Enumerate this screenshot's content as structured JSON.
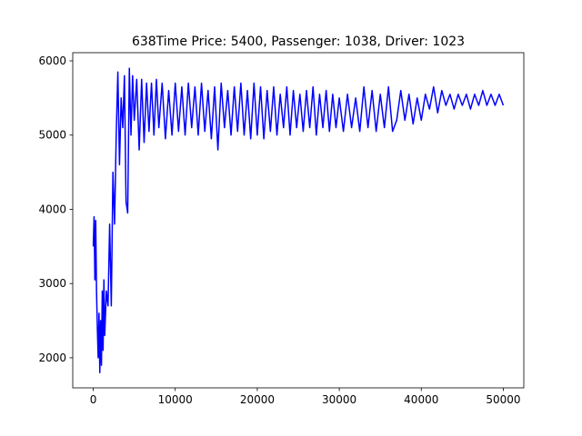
{
  "chart_data": {
    "type": "line",
    "title": "638Time Price: 5400, Passenger: 1038, Driver: 1023",
    "x": [
      0,
      100,
      200,
      300,
      400,
      500,
      600,
      700,
      800,
      900,
      1000,
      1100,
      1200,
      1300,
      1400,
      1600,
      1800,
      2000,
      2200,
      2400,
      2600,
      2800,
      3000,
      3200,
      3400,
      3600,
      3800,
      4000,
      4200,
      4400,
      4600,
      4800,
      5000,
      5300,
      5600,
      5900,
      6200,
      6500,
      6800,
      7100,
      7400,
      7700,
      8000,
      8400,
      8800,
      9200,
      9600,
      10000,
      10400,
      10800,
      11200,
      11600,
      12000,
      12400,
      12800,
      13200,
      13600,
      14000,
      14400,
      14800,
      15200,
      15600,
      16000,
      16400,
      16800,
      17200,
      17600,
      18000,
      18400,
      18800,
      19200,
      19600,
      20000,
      20400,
      20800,
      21200,
      21600,
      22000,
      22400,
      22800,
      23200,
      23600,
      24000,
      24400,
      24800,
      25200,
      25600,
      26000,
      26400,
      26800,
      27200,
      27600,
      28000,
      28400,
      28800,
      29200,
      29600,
      30000,
      30500,
      31000,
      31500,
      32000,
      32500,
      33000,
      33500,
      34000,
      34500,
      35000,
      35500,
      36000,
      36500,
      37000,
      37500,
      38000,
      38500,
      39000,
      39500,
      40000,
      40500,
      41000,
      41500,
      42000,
      42500,
      43000,
      43500,
      44000,
      44500,
      45000,
      45500,
      46000,
      46500,
      47000,
      47500,
      48000,
      48500,
      49000,
      49500,
      50000
    ],
    "series": [
      {
        "color": "#0000ff",
        "values": [
          3500,
          3900,
          3050,
          3850,
          2900,
          2400,
          2000,
          2600,
          1800,
          2500,
          1900,
          2900,
          2100,
          3050,
          2300,
          2900,
          2700,
          3800,
          2700,
          4500,
          3800,
          5000,
          5850,
          4600,
          5500,
          5100,
          5800,
          4100,
          3950,
          5900,
          5000,
          5800,
          5200,
          5750,
          4800,
          5750,
          4900,
          5700,
          5050,
          5700,
          5000,
          5750,
          5100,
          5700,
          4950,
          5600,
          5000,
          5700,
          5050,
          5650,
          5000,
          5700,
          5100,
          5650,
          5000,
          5700,
          5050,
          5600,
          4950,
          5650,
          4800,
          5700,
          5100,
          5600,
          5000,
          5650,
          5050,
          5700,
          5000,
          5600,
          4950,
          5700,
          5000,
          5650,
          4950,
          5600,
          5050,
          5650,
          5000,
          5550,
          5100,
          5650,
          5000,
          5600,
          5100,
          5550,
          5050,
          5600,
          5100,
          5650,
          5000,
          5550,
          5100,
          5600,
          5050,
          5550,
          5100,
          5500,
          5050,
          5550,
          5100,
          5500,
          5050,
          5650,
          5100,
          5600,
          5050,
          5550,
          5100,
          5650,
          5050,
          5200,
          5600,
          5200,
          5550,
          5150,
          5500,
          5200,
          5550,
          5350,
          5650,
          5300,
          5600,
          5400,
          5550,
          5350,
          5550,
          5400,
          5550,
          5350,
          5550,
          5400,
          5600,
          5400,
          5550,
          5400,
          5550,
          5400
        ]
      }
    ],
    "xlim": [
      -2500,
      52500
    ],
    "xticks": [
      0,
      10000,
      20000,
      30000,
      40000,
      50000
    ],
    "ylim": [
      1595,
      6110
    ],
    "yticks": [
      2000,
      3000,
      4000,
      5000,
      6000
    ]
  }
}
